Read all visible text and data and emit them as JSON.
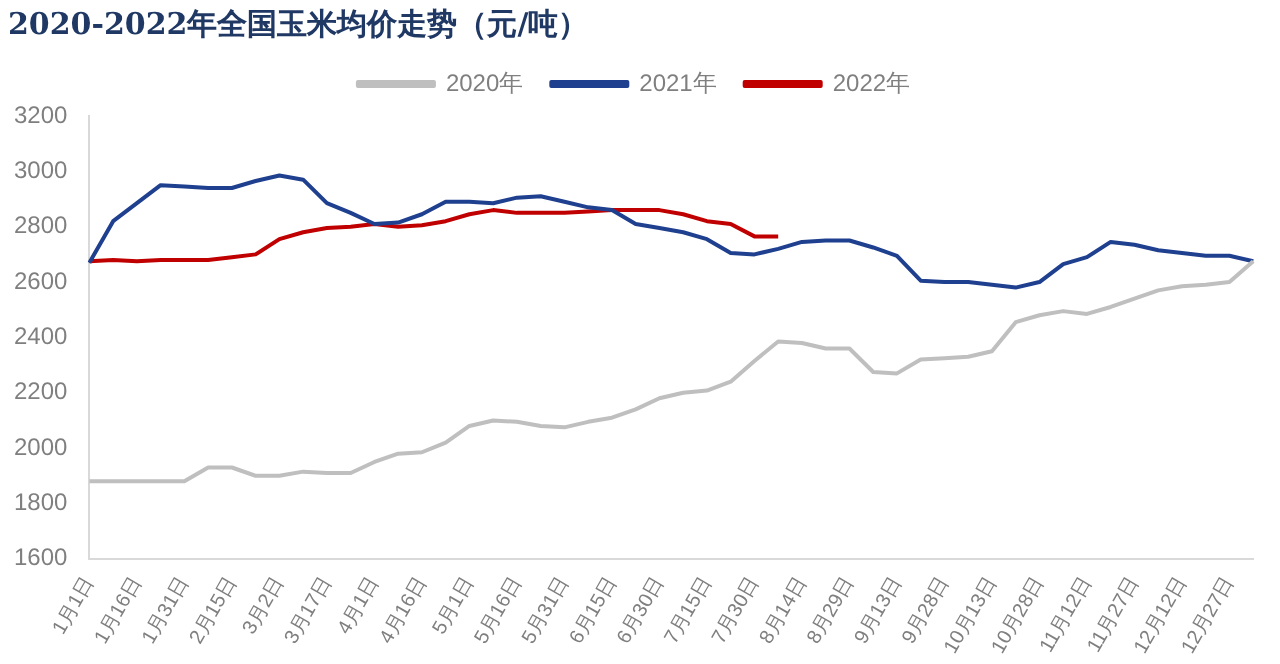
{
  "chart_data": {
    "type": "line",
    "title": "2020-2022年全国玉米均价走势（元/吨）",
    "categories": [
      "1月1日",
      null,
      "1月16日",
      null,
      "1月31日",
      null,
      "2月15日",
      null,
      "3月2日",
      null,
      "3月17日",
      null,
      "4月1日",
      null,
      "4月16日",
      null,
      "5月1日",
      null,
      "5月16日",
      null,
      "5月31日",
      null,
      "6月15日",
      null,
      "6月30日",
      null,
      "7月15日",
      null,
      "7月30日",
      null,
      "8月14日",
      null,
      "8月29日",
      null,
      "9月13日",
      null,
      "9月28日",
      null,
      "10月13日",
      null,
      "10月28日",
      null,
      "11月12日",
      null,
      "11月27日",
      null,
      "12月12日",
      null,
      "12月27日",
      null
    ],
    "series": [
      {
        "name": "2020年",
        "color": "#bfbfbf",
        "values": [
          1880,
          1880,
          1880,
          1880,
          1880,
          1930,
          1930,
          1900,
          1900,
          1915,
          1910,
          1910,
          1950,
          1980,
          1985,
          2020,
          2080,
          2100,
          2095,
          2080,
          2075,
          2095,
          2110,
          2140,
          2180,
          2200,
          2208,
          2240,
          2315,
          2385,
          2380,
          2360,
          2360,
          2275,
          2270,
          2320,
          2325,
          2330,
          2350,
          2455,
          2480,
          2495,
          2485,
          2510,
          2540,
          2570,
          2585,
          2590,
          2600,
          2675
        ]
      },
      {
        "name": "2021年",
        "color": "#1f3f8f",
        "values": [
          2670,
          2820,
          2885,
          2950,
          2945,
          2940,
          2940,
          2965,
          2985,
          2970,
          2885,
          2850,
          2810,
          2815,
          2845,
          2890,
          2890,
          2885,
          2905,
          2910,
          2890,
          2870,
          2860,
          2810,
          2795,
          2780,
          2755,
          2705,
          2700,
          2720,
          2745,
          2750,
          2750,
          2725,
          2695,
          2605,
          2600,
          2600,
          2590,
          2580,
          2600,
          2665,
          2690,
          2745,
          2735,
          2715,
          2705,
          2695,
          2695,
          2675
        ]
      },
      {
        "name": "2022年",
        "color": "#c00000",
        "values": [
          2675,
          2680,
          2675,
          2680,
          2680,
          2680,
          2690,
          2700,
          2755,
          2780,
          2795,
          2800,
          2810,
          2800,
          2805,
          2820,
          2845,
          2860,
          2850,
          2850,
          2850,
          2855,
          2860,
          2860,
          2860,
          2845,
          2820,
          2810,
          2765,
          2765,
          null,
          null,
          null,
          null,
          null,
          null,
          null,
          null,
          null,
          null,
          null,
          null,
          null,
          null,
          null,
          null,
          null,
          null,
          null,
          null
        ]
      }
    ],
    "ylim": [
      1600,
      3200
    ],
    "yticks": [
      1600,
      1800,
      2000,
      2200,
      2400,
      2600,
      2800,
      3000,
      3200
    ],
    "grid": false,
    "legend": "top",
    "marker": "none",
    "line_style": "solid"
  }
}
